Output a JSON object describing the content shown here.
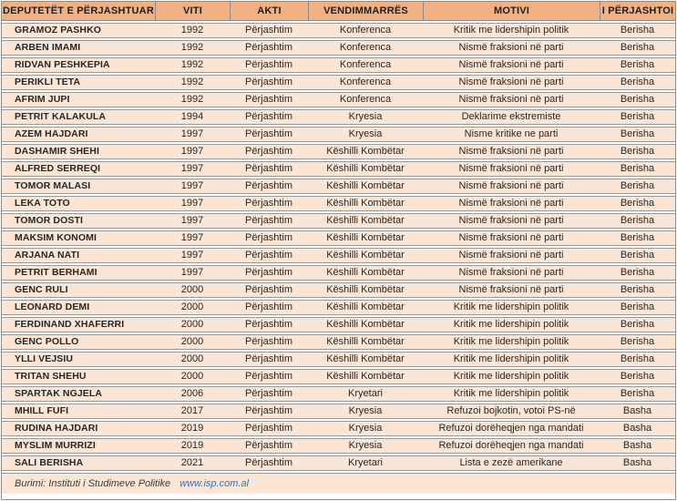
{
  "chart_data": {
    "type": "table",
    "columns": [
      "DEPUTETËT E PËRJASHTUAR",
      "VITI",
      "AKTI",
      "VENDIMMARRËS",
      "MOTIVI",
      "I PËRJASHTOI"
    ],
    "rows": [
      [
        "GRAMOZ PASHKO",
        "1992",
        "Përjashtim",
        "Konferenca",
        "Kritik me lidershipin politik",
        "Berisha"
      ],
      [
        "ARBEN IMAMI",
        "1992",
        "Përjashtim",
        "Konferenca",
        "Nismë fraksioni në parti",
        "Berisha"
      ],
      [
        "RIDVAN PESHKEPIA",
        "1992",
        "Përjashtim",
        "Konferenca",
        "Nismë fraksioni në parti",
        "Berisha"
      ],
      [
        "PERIKLI TETA",
        "1992",
        "Përjashtim",
        "Konferenca",
        "Nismë fraksioni në parti",
        "Berisha"
      ],
      [
        "AFRIM JUPI",
        "1992",
        "Përjashtim",
        "Konferenca",
        "Nismë fraksioni në parti",
        "Berisha"
      ],
      [
        "PETRIT KALAKULA",
        "1994",
        "Përjashtim",
        "Kryesia",
        "Deklarime ekstremiste",
        "Berisha"
      ],
      [
        "AZEM HAJDARI",
        "1997",
        "Përjashtim",
        "Kryesia",
        "Nisme kritike ne parti",
        "Berisha"
      ],
      [
        "DASHAMIR SHEHI",
        "1997",
        "Përjashtim",
        "Këshilli Kombëtar",
        "Nismë fraksioni në parti",
        "Berisha"
      ],
      [
        "ALFRED SERREQI",
        "1997",
        "Përjashtim",
        "Këshilli Kombëtar",
        "Nismë fraksioni në parti",
        "Berisha"
      ],
      [
        "TOMOR MALASI",
        "1997",
        "Përjashtim",
        "Këshilli Kombëtar",
        "Nismë fraksioni në parti",
        "Berisha"
      ],
      [
        "LEKA TOTO",
        "1997",
        "Përjashtim",
        "Këshilli Kombëtar",
        "Nismë fraksioni në parti",
        "Berisha"
      ],
      [
        "TOMOR DOSTI",
        "1997",
        "Përjashtim",
        "Këshilli Kombëtar",
        "Nismë fraksioni në parti",
        "Berisha"
      ],
      [
        "MAKSIM KONOMI",
        "1997",
        "Përjashtim",
        "Këshilli Kombëtar",
        "Nismë fraksioni në parti",
        "Berisha"
      ],
      [
        "ARJANA NATI",
        "1997",
        "Përjashtim",
        "Këshilli Kombëtar",
        "Nismë fraksioni në parti",
        "Berisha"
      ],
      [
        "PETRIT BERHAMI",
        "1997",
        "Përjashtim",
        "Këshilli Kombëtar",
        "Nismë fraksioni në parti",
        "Berisha"
      ],
      [
        "GENC RULI",
        "2000",
        "Përjashtim",
        "Këshilli Kombëtar",
        "Nismë fraksioni në parti",
        "Berisha"
      ],
      [
        "LEONARD DEMI",
        "2000",
        "Përjashtim",
        "Këshilli Kombëtar",
        "Kritik me lidershipin politik",
        "Berisha"
      ],
      [
        "FERDINAND XHAFERRI",
        "2000",
        "Përjashtim",
        "Këshilli Kombëtar",
        "Kritik me lidershipin politik",
        "Berisha"
      ],
      [
        "GENC POLLO",
        "2000",
        "Përjashtim",
        "Këshilli Kombëtar",
        "Kritik me lidershipin politik",
        "Berisha"
      ],
      [
        "YLLI VEJSIU",
        "2000",
        "Përjashtim",
        "Këshilli Kombëtar",
        "Kritik me lidershipin politik",
        "Berisha"
      ],
      [
        "TRITAN SHEHU",
        "2000",
        "Përjashtim",
        "Këshilli Kombëtar",
        "Kritik me lidershipin politik",
        "Berisha"
      ],
      [
        "SPARTAK NGJELA",
        "2006",
        "Përjashtim",
        "Kryetari",
        "Kritik me lidershipin politik",
        "Berisha"
      ],
      [
        "MHILL FUFI",
        "2017",
        "Përjashtim",
        "Kryesia",
        "Refuzoi bojkotin, votoi PS-në",
        "Basha"
      ],
      [
        "RUDINA HAJDARI",
        "2019",
        "Përjashtim",
        "Kryesia",
        "Refuzoi dorëheqjen nga mandati",
        "Basha"
      ],
      [
        "MYSLIM MURRIZI",
        "2019",
        "Përjashtim",
        "Kryesia",
        "Refuzoi dorëheqjen nga mandati",
        "Basha"
      ],
      [
        "SALI BERISHA",
        "2021",
        "Përjashtim",
        "Kryetari",
        "Lista e zezë amerikane",
        "Basha"
      ]
    ]
  },
  "footer": {
    "source_text": "Burimi: Instituti i Studimeve Politike",
    "link_text": "www.isp.com.al"
  },
  "colors": {
    "header_bg": "#f2b183",
    "row_bg": "#fbe6d5",
    "border_gray": "#8c8c8c",
    "text": "#262626",
    "link_blue": "#2e75b6"
  }
}
